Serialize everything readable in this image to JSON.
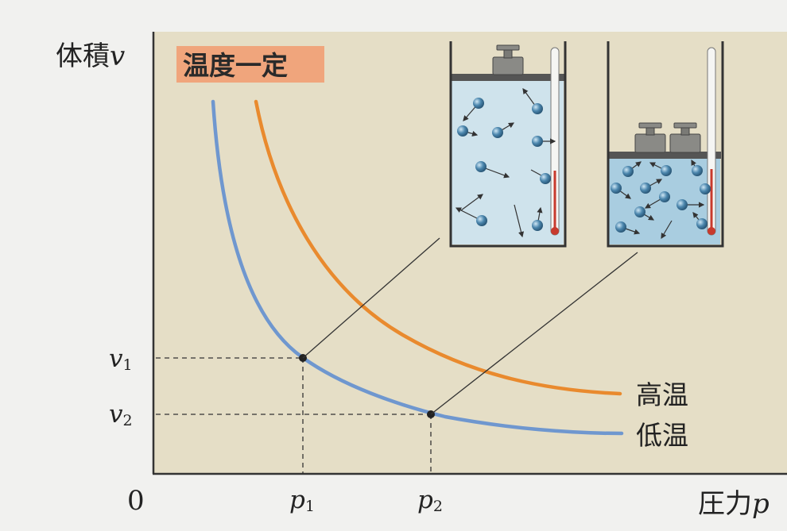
{
  "axes": {
    "y_label": "体積",
    "y_var": "v",
    "x_label": "圧力",
    "x_var": "p",
    "origin": "0",
    "x_ticks": [
      {
        "var": "p",
        "sub": "1"
      },
      {
        "var": "p",
        "sub": "2"
      }
    ],
    "y_ticks": [
      {
        "var": "v",
        "sub": "1"
      },
      {
        "var": "v",
        "sub": "2"
      }
    ]
  },
  "badge": "温度一定",
  "curves": {
    "high": {
      "label": "高温",
      "color": "#e98a2e"
    },
    "low": {
      "label": "低温",
      "color": "#6f97cf"
    }
  },
  "colors": {
    "plot_bg": "#e5dec6",
    "badge_bg": "#f0a57c",
    "water": "#cfe3ec",
    "water_deep": "#a9cde0",
    "molecule": "#4b86ad"
  },
  "icons": [
    "piston-weight-icon",
    "thermometer-icon",
    "molecule-icon"
  ]
}
